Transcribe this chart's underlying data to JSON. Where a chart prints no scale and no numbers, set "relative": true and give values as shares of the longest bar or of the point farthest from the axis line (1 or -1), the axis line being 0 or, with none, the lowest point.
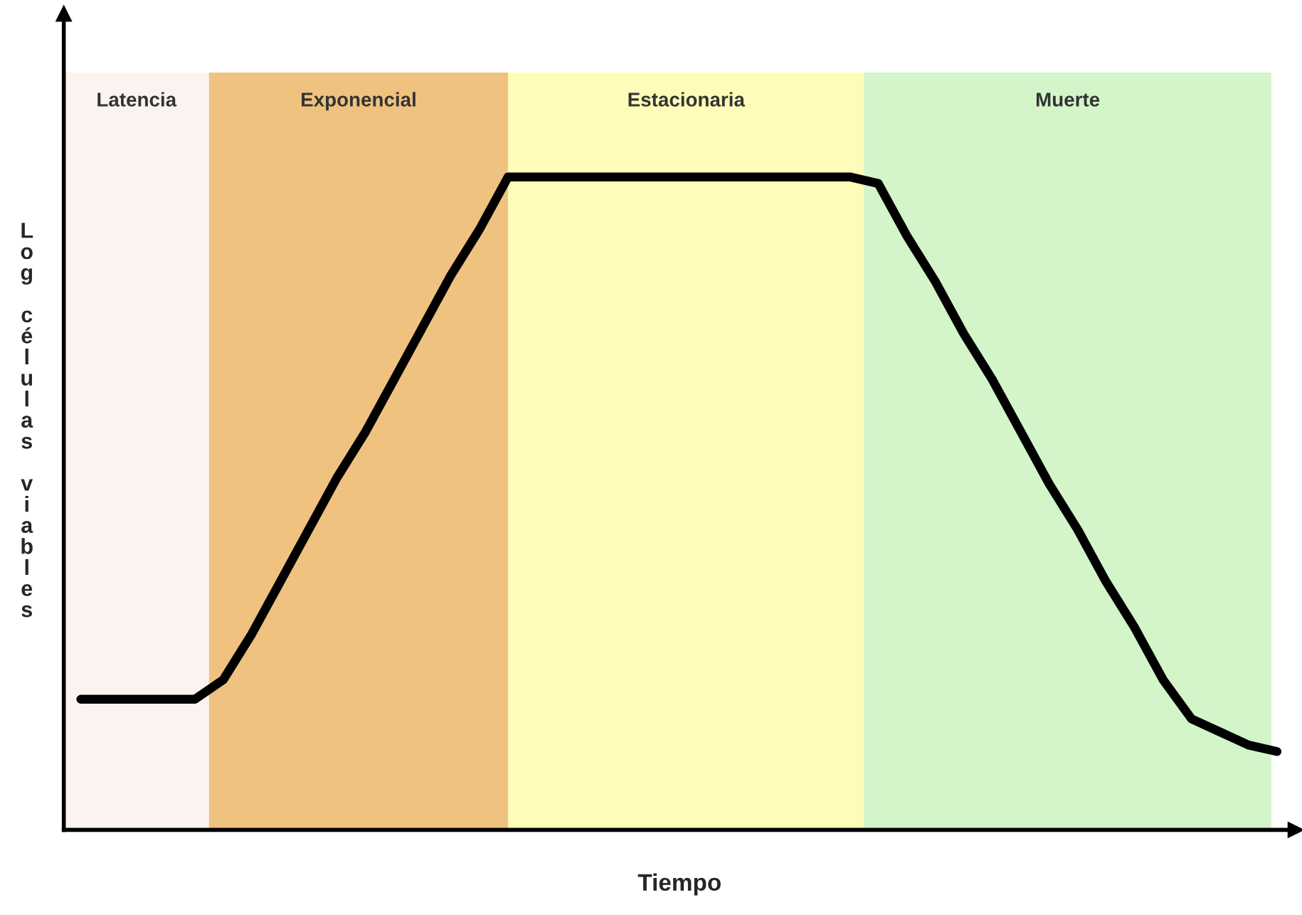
{
  "chart_data": {
    "type": "line",
    "relative": true,
    "xlabel": "Tiempo",
    "ylabel": "Log células viables",
    "categories": [
      null,
      null,
      null,
      null,
      null,
      null,
      null,
      null,
      null,
      null,
      null,
      null,
      null,
      null,
      null,
      null,
      null,
      null,
      null,
      null,
      null,
      null,
      null,
      null,
      null,
      null,
      null,
      null,
      null,
      null,
      null,
      null,
      null,
      null,
      null,
      null,
      null,
      null,
      null,
      null,
      null,
      null,
      null
    ],
    "legend": false,
    "marker": "none",
    "line_style": "solid",
    "series": [
      {
        "color": "#000000",
        "values": [
          0.2,
          0.2,
          0.2,
          0.2,
          0.2,
          0.23,
          0.3,
          0.38,
          0.46,
          0.54,
          0.61,
          0.69,
          0.77,
          0.85,
          0.92,
          1,
          1,
          1,
          1,
          1,
          1,
          1,
          1,
          1,
          1,
          1,
          1,
          1,
          0.99,
          0.91,
          0.84,
          0.76,
          0.69,
          0.61,
          0.53,
          0.46,
          0.38,
          0.31,
          0.23,
          0.17,
          0.15,
          0.13,
          0.12
        ]
      }
    ],
    "annotations": [
      "Latencia",
      "Exponencial",
      "Estacionaria",
      "Muerte"
    ]
  }
}
